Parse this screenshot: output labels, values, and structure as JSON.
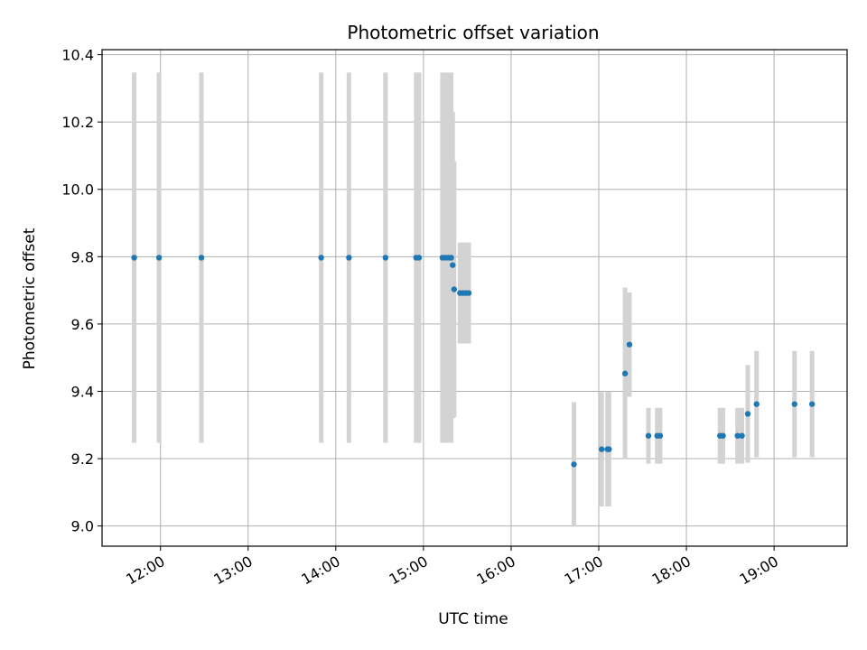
{
  "chart_data": {
    "type": "scatter",
    "title": "Photometric offset variation",
    "xlabel": "UTC time",
    "ylabel": "Photometric offset",
    "x_is_time": true,
    "xlim": [
      "11:20",
      "19:50"
    ],
    "ylim": [
      8.94,
      10.415
    ],
    "xticks": [
      "12:00",
      "13:00",
      "14:00",
      "15:00",
      "16:00",
      "17:00",
      "18:00",
      "19:00"
    ],
    "yticks": [
      "9.0",
      "9.2",
      "9.4",
      "9.6",
      "9.8",
      "10.0",
      "10.2",
      "10.4"
    ],
    "grid": true,
    "colors": {
      "point": "#1f77b4",
      "errorbar": "#d3d3d3",
      "grid": "#b0b0b0"
    },
    "points": [
      {
        "time": "11:42",
        "value": 9.797,
        "err": 0.55
      },
      {
        "time": "11:59",
        "value": 9.797,
        "err": 0.55
      },
      {
        "time": "12:28",
        "value": 9.797,
        "err": 0.55
      },
      {
        "time": "13:50",
        "value": 9.797,
        "err": 0.55
      },
      {
        "time": "14:09",
        "value": 9.797,
        "err": 0.55
      },
      {
        "time": "14:34",
        "value": 9.797,
        "err": 0.55
      },
      {
        "time": "14:55",
        "value": 9.797,
        "err": 0.55
      },
      {
        "time": "14:57",
        "value": 9.797,
        "err": 0.55
      },
      {
        "time": "15:13",
        "value": 9.797,
        "err": 0.55
      },
      {
        "time": "15:15",
        "value": 9.797,
        "err": 0.55
      },
      {
        "time": "15:17",
        "value": 9.797,
        "err": 0.55
      },
      {
        "time": "15:19",
        "value": 9.797,
        "err": 0.55
      },
      {
        "time": "15:20",
        "value": 9.775,
        "err": 0.455
      },
      {
        "time": "15:21",
        "value": 9.703,
        "err": 0.38
      },
      {
        "time": "15:25",
        "value": 9.692,
        "err": 0.15
      },
      {
        "time": "15:27",
        "value": 9.692,
        "err": 0.15
      },
      {
        "time": "15:29",
        "value": 9.692,
        "err": 0.15
      },
      {
        "time": "15:31",
        "value": 9.692,
        "err": 0.15
      },
      {
        "time": "16:43",
        "value": 9.183,
        "err": 0.185
      },
      {
        "time": "17:02",
        "value": 9.228,
        "err": 0.17
      },
      {
        "time": "17:06",
        "value": 9.228,
        "err": 0.17
      },
      {
        "time": "17:07",
        "value": 9.228,
        "err": 0.17
      },
      {
        "time": "17:18",
        "value": 9.453,
        "err": 0.255
      },
      {
        "time": "17:21",
        "value": 9.539,
        "err": 0.155
      },
      {
        "time": "17:34",
        "value": 9.268,
        "err": 0.083
      },
      {
        "time": "17:40",
        "value": 9.268,
        "err": 0.083
      },
      {
        "time": "17:42",
        "value": 9.268,
        "err": 0.083
      },
      {
        "time": "18:23",
        "value": 9.268,
        "err": 0.083
      },
      {
        "time": "18:25",
        "value": 9.268,
        "err": 0.083
      },
      {
        "time": "18:35",
        "value": 9.268,
        "err": 0.083
      },
      {
        "time": "18:38",
        "value": 9.268,
        "err": 0.083
      },
      {
        "time": "18:42",
        "value": 9.333,
        "err": 0.145
      },
      {
        "time": "18:48",
        "value": 9.362,
        "err": 0.158
      },
      {
        "time": "19:14",
        "value": 9.362,
        "err": 0.158
      },
      {
        "time": "19:26",
        "value": 9.362,
        "err": 0.158
      }
    ]
  }
}
